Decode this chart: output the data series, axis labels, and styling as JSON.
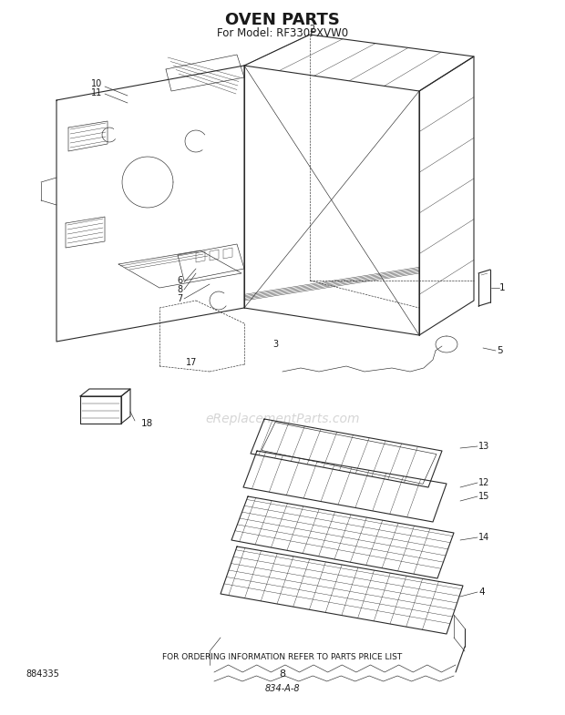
{
  "title": "OVEN PARTS",
  "subtitle": "For Model: RF330PXVW0",
  "footer_text": "FOR ORDERING INFORMATION REFER TO PARTS PRICE LIST",
  "page_number": "8",
  "part_number": "834-A-8",
  "model_code": "884335",
  "bg_color": "#ffffff",
  "line_color": "#2a2a2a",
  "text_color": "#1a1a1a",
  "title_fontsize": 13,
  "subtitle_fontsize": 8.5,
  "footer_fontsize": 6.5,
  "label_fontsize": 7.5
}
